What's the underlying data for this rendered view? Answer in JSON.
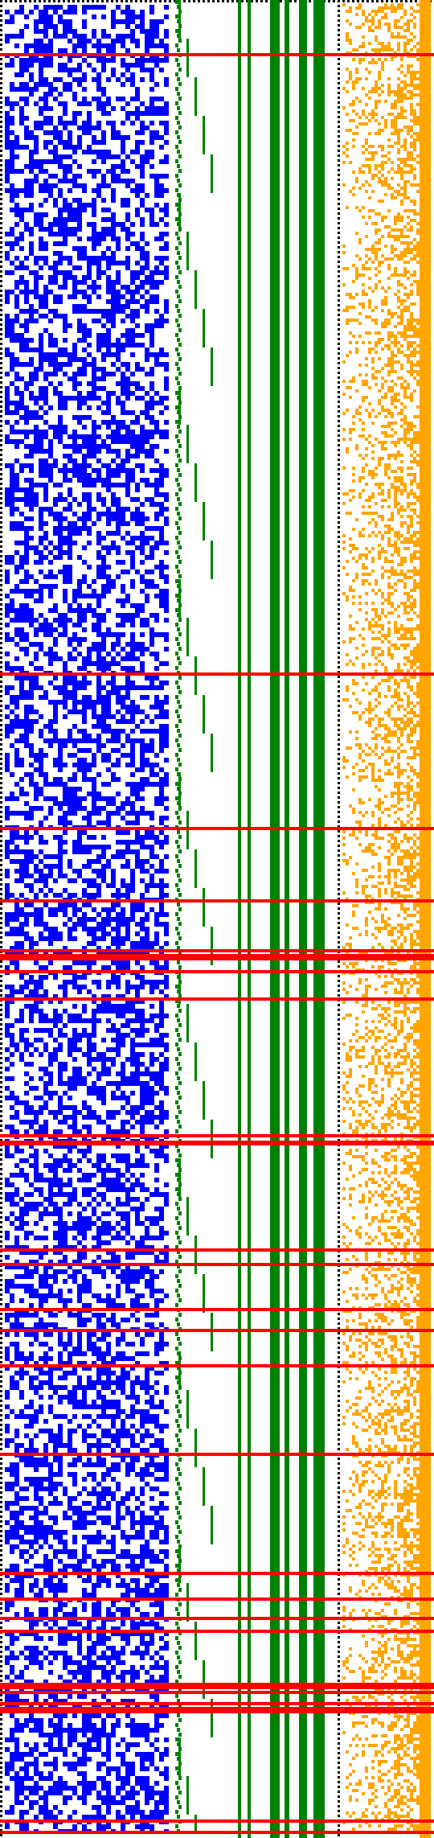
{
  "image": {
    "description_kind": "bit-pattern visualization, no visible text",
    "background_color": "#ffffff"
  },
  "colors": {
    "border_dots": "#000000",
    "bits_region_1": "#0000ff",
    "tree_region": "#008000",
    "bits_region_2": "#ffa500",
    "row_highlight": "#ff0000"
  },
  "regions": [
    {
      "name": "blue-bit-grid",
      "color_key": "bits_region_1"
    },
    {
      "name": "green-tree-lines",
      "color_key": "tree_region"
    },
    {
      "name": "orange-bit-grid",
      "color_key": "bits_region_2"
    }
  ],
  "highlighted_row_count": 30
}
